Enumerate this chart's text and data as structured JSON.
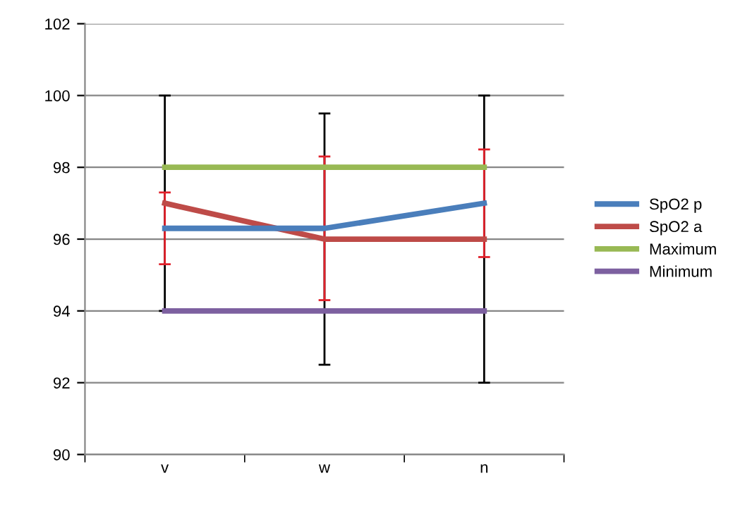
{
  "chart_data": {
    "type": "line",
    "categories": [
      "v",
      "w",
      "n"
    ],
    "series": [
      {
        "name": "SpO2 p",
        "color": "#4a7ebb",
        "values": [
          96.3,
          96.3,
          97.0
        ],
        "errors": [
          [
            94.0,
            100.0
          ],
          [
            92.5,
            99.5
          ],
          [
            92.0,
            100.0
          ]
        ]
      },
      {
        "name": "SpO2 a",
        "color": "#be4b48",
        "values": [
          97.0,
          96.0,
          96.0
        ],
        "errors": [
          [
            95.3,
            97.3
          ],
          [
            94.3,
            98.3
          ],
          [
            95.5,
            98.5
          ]
        ]
      },
      {
        "name": "Maximum",
        "color": "#98b954",
        "values": [
          98,
          98,
          98
        ]
      },
      {
        "name": "Minimum",
        "color": "#7d60a0",
        "values": [
          94,
          94,
          94
        ]
      }
    ],
    "ylim": [
      90,
      102
    ],
    "yticks": [
      90,
      92,
      94,
      96,
      98,
      100,
      102
    ],
    "grid": "y",
    "legend": "right",
    "marker": "none",
    "line_style": "solid"
  }
}
